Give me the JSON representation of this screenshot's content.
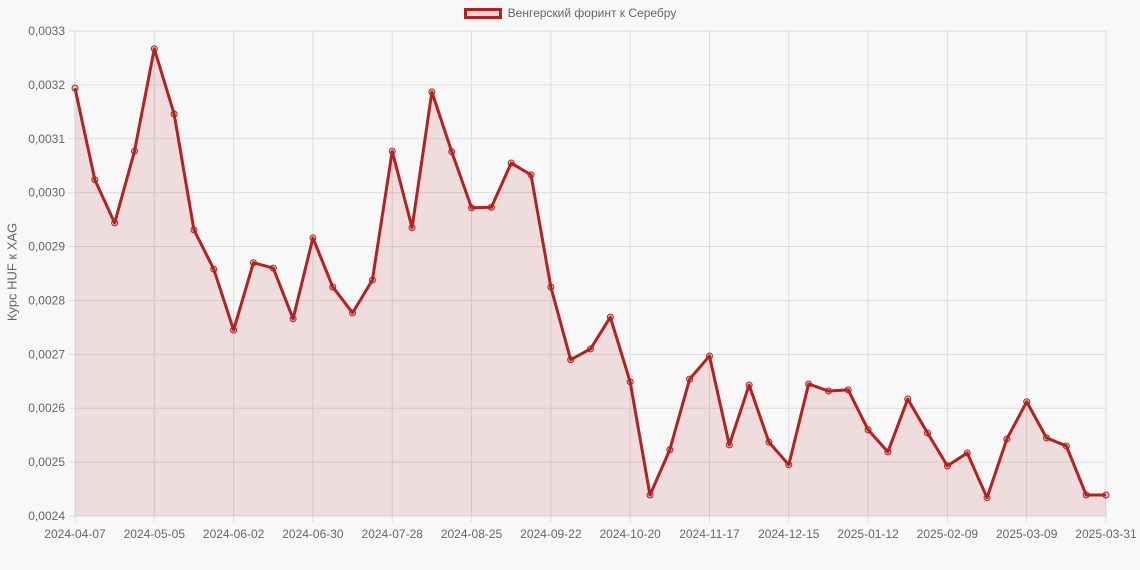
{
  "legend": {
    "label": "Венгерский форинт к Серебру",
    "swatch_color": "#b22222"
  },
  "colors": {
    "line": "#b22222",
    "fill": "rgba(178,34,34,0.13)",
    "grid": "#dddddd",
    "background": "#f8f8f8",
    "text": "#666666"
  },
  "chart_data": {
    "type": "line",
    "title": "",
    "xlabel": "",
    "ylabel": "Курс HUF к XAG",
    "legend": [
      "Венгерский форинт к Серебру"
    ],
    "legend_position": "top",
    "grid": true,
    "ylim": [
      0.0024,
      0.0033
    ],
    "y_ticks": [
      "0,0024",
      "0,0025",
      "0,0026",
      "0,0027",
      "0,0028",
      "0,0029",
      "0,0030",
      "0,0031",
      "0,0032",
      "0,0033"
    ],
    "x_tick_labels": [
      "2024-04-07",
      "2024-05-05",
      "2024-06-02",
      "2024-06-30",
      "2024-07-28",
      "2024-08-25",
      "2024-09-22",
      "2024-10-20",
      "2024-11-17",
      "2024-12-15",
      "2025-01-12",
      "2025-02-09",
      "2025-03-09",
      "2025-03-31"
    ],
    "x": [
      "2024-04-07",
      "2024-04-14",
      "2024-04-21",
      "2024-04-28",
      "2024-05-05",
      "2024-05-12",
      "2024-05-19",
      "2024-05-26",
      "2024-06-02",
      "2024-06-09",
      "2024-06-16",
      "2024-06-23",
      "2024-06-30",
      "2024-07-07",
      "2024-07-14",
      "2024-07-21",
      "2024-07-28",
      "2024-08-04",
      "2024-08-11",
      "2024-08-18",
      "2024-08-25",
      "2024-09-01",
      "2024-09-08",
      "2024-09-15",
      "2024-09-22",
      "2024-09-29",
      "2024-10-06",
      "2024-10-13",
      "2024-10-20",
      "2024-10-27",
      "2024-11-03",
      "2024-11-10",
      "2024-11-17",
      "2024-11-24",
      "2024-12-01",
      "2024-12-08",
      "2024-12-15",
      "2024-12-22",
      "2024-12-29",
      "2025-01-05",
      "2025-01-12",
      "2025-01-19",
      "2025-01-26",
      "2025-02-02",
      "2025-02-09",
      "2025-02-16",
      "2025-02-23",
      "2025-03-02",
      "2025-03-09",
      "2025-03-16",
      "2025-03-23",
      "2025-03-30",
      "2025-03-31"
    ],
    "series": [
      {
        "name": "Венгерский форинт к Серебру",
        "values": [
          0.003194,
          0.003024,
          0.002944,
          0.003077,
          0.003267,
          0.003146,
          0.002931,
          0.002858,
          0.002745,
          0.00287,
          0.00286,
          0.002766,
          0.002916,
          0.002825,
          0.002777,
          0.002838,
          0.003077,
          0.002935,
          0.003187,
          0.003076,
          0.002972,
          0.002973,
          0.003055,
          0.003033,
          0.002825,
          0.00269,
          0.00271,
          0.002769,
          0.002649,
          0.002439,
          0.002523,
          0.002654,
          0.002697,
          0.002532,
          0.002643,
          0.002537,
          0.002495,
          0.002645,
          0.002632,
          0.002634,
          0.00256,
          0.002519,
          0.002617,
          0.002554,
          0.002493,
          0.002517,
          0.002434,
          0.002543,
          0.002612,
          0.002545,
          0.00253,
          0.002439,
          0.002439
        ]
      }
    ]
  }
}
